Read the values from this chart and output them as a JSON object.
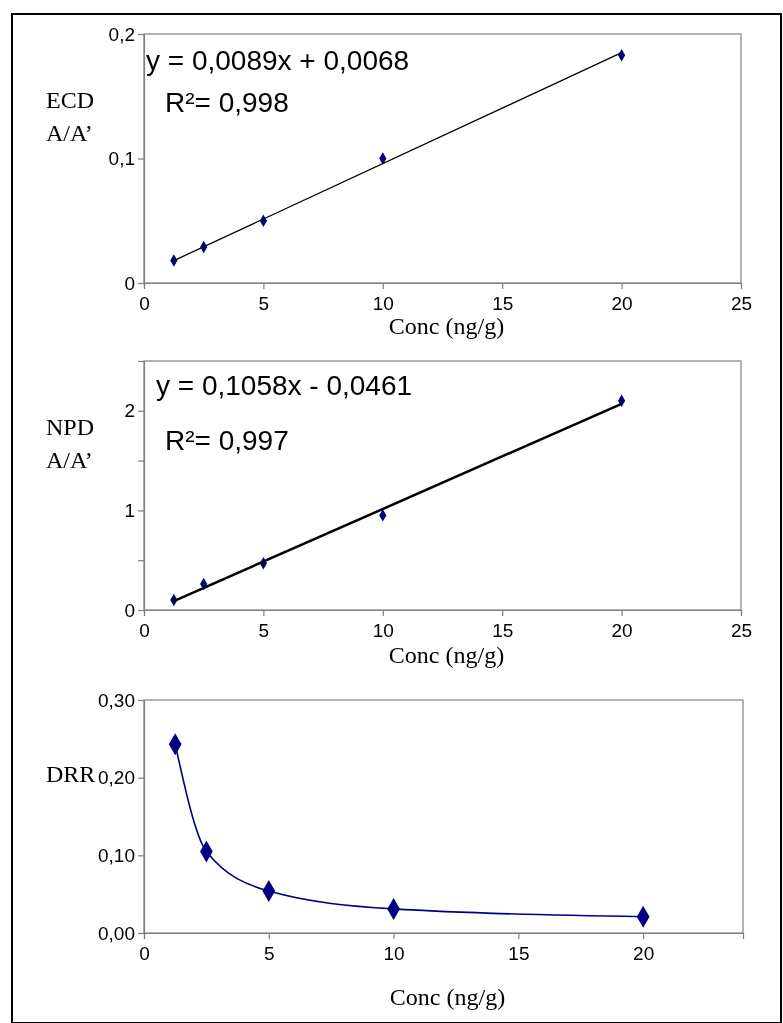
{
  "chart_data": [
    {
      "type": "scatter",
      "xlabel": "Conc (ng/g)",
      "ylabel": "ECD\nA/A’",
      "xlim": [
        0,
        25
      ],
      "xticks": [
        0,
        5,
        10,
        15,
        20,
        25
      ],
      "ylim": [
        0,
        0.2
      ],
      "yticks": [
        0,
        {
          "value": 0.1,
          "label": "0,1"
        },
        {
          "value": 0.2,
          "label": "0,2"
        }
      ],
      "grid": false,
      "annotations": [
        "y = 0,0089x + 0,0068",
        "R²= 0,998"
      ],
      "series": [
        {
          "marker": "diamond",
          "color": "#000080",
          "x": [
            1.25,
            2.5,
            5,
            10,
            20
          ],
          "values": [
            0.018,
            0.029,
            0.05,
            0.1,
            0.183
          ]
        },
        {
          "type": "line",
          "marker": "none",
          "line_style": "solid",
          "color": "#000000",
          "x": [
            1.25,
            20
          ],
          "values": [
            0.018,
            0.185
          ]
        }
      ]
    },
    {
      "type": "scatter",
      "xlabel": "Conc (ng/g)",
      "ylabel": "NPD\nA/A’",
      "xlim": [
        0,
        25
      ],
      "xticks": [
        0,
        5,
        10,
        15,
        20,
        25
      ],
      "ylim": [
        0,
        2.5
      ],
      "yticks": [
        0,
        {
          "value": 0.5,
          "label": null
        },
        1,
        {
          "value": 1.5,
          "label": null
        },
        2,
        {
          "value": 2.5,
          "label": null
        }
      ],
      "grid": false,
      "annotations": [
        "y = 0,1058x - 0,0461",
        "R²= 0,997"
      ],
      "series": [
        {
          "marker": "diamond",
          "color": "#000080",
          "x": [
            1.25,
            2.5,
            5,
            10,
            20
          ],
          "values": [
            0.1,
            0.26,
            0.47,
            0.95,
            2.1
          ]
        },
        {
          "type": "line",
          "marker": "none",
          "line_style": "solid",
          "color": "#000000",
          "x": [
            1.25,
            20
          ],
          "values": [
            0.09,
            2.07
          ]
        }
      ]
    },
    {
      "type": "line",
      "xlabel": "Conc (ng/g)",
      "ylabel": "DRR",
      "xlim": [
        0,
        24
      ],
      "xticks": [
        0,
        5,
        10,
        15,
        20
      ],
      "ylim": [
        0,
        0.3
      ],
      "yticks": [
        {
          "value": 0,
          "label": "0,00"
        },
        {
          "value": 0.1,
          "label": "0,10"
        },
        {
          "value": 0.2,
          "label": "0,20"
        },
        {
          "value": 0.3,
          "label": "0,30"
        }
      ],
      "grid": false,
      "marker": "diamond",
      "line_style": "solid",
      "series": [
        {
          "color": "#000080",
          "x": [
            1.25,
            2.5,
            5,
            10,
            20
          ],
          "values": [
            0.243,
            0.105,
            0.054,
            0.031,
            0.021
          ]
        }
      ]
    }
  ]
}
